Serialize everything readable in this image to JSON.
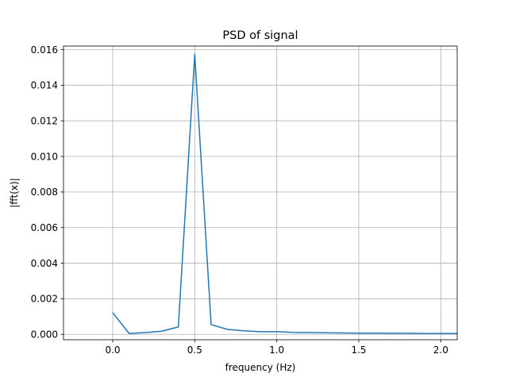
{
  "chart_data": {
    "type": "line",
    "title": "PSD of signal",
    "xlabel": "frequency (Hz)",
    "ylabel": "|fft(x)|",
    "xlim": [
      -0.3,
      2.1
    ],
    "ylim": [
      -0.0003,
      0.0162
    ],
    "xticks": [
      0.0,
      0.5,
      1.0,
      1.5,
      2.0
    ],
    "xtick_labels": [
      "0.0",
      "0.5",
      "1.0",
      "1.5",
      "2.0"
    ],
    "yticks": [
      0.0,
      0.002,
      0.004,
      0.006,
      0.008,
      0.01,
      0.012,
      0.014,
      0.016
    ],
    "ytick_labels": [
      "0.000",
      "0.002",
      "0.004",
      "0.006",
      "0.008",
      "0.010",
      "0.012",
      "0.014",
      "0.016"
    ],
    "grid": true,
    "series": [
      {
        "color": "#1f77b4",
        "x": [
          0.0,
          0.1,
          0.2,
          0.3,
          0.4,
          0.5,
          0.6,
          0.7,
          0.8,
          0.9,
          1.0,
          1.1,
          1.2,
          1.3,
          1.4,
          1.5,
          1.6,
          1.7,
          1.8,
          1.9,
          2.0,
          2.1
        ],
        "y": [
          0.00122,
          5e-05,
          0.0001,
          0.00018,
          0.00042,
          0.01573,
          0.00055,
          0.00028,
          0.0002,
          0.00015,
          0.00015,
          0.00011,
          0.0001,
          9e-05,
          8e-05,
          7e-05,
          7e-05,
          6e-05,
          6e-05,
          5e-05,
          5e-05,
          5e-05
        ]
      }
    ]
  }
}
